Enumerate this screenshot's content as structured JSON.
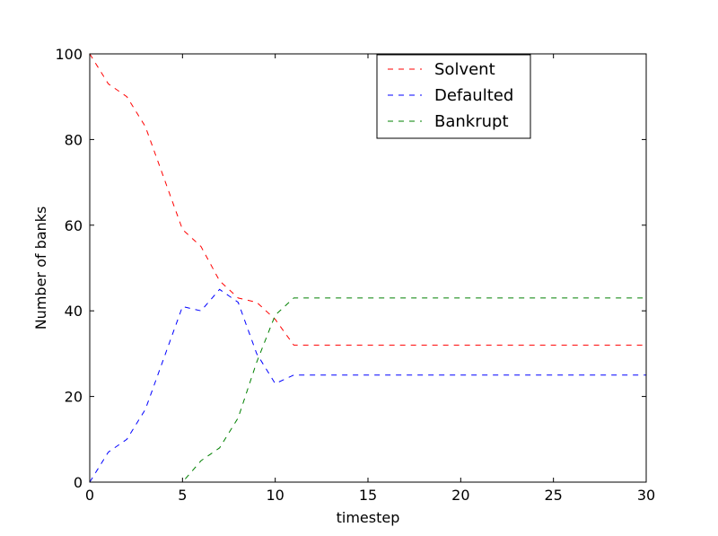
{
  "chart_data": {
    "type": "line",
    "title": "",
    "xlabel": "timestep",
    "ylabel": "Number of banks",
    "xlim": [
      0,
      30
    ],
    "ylim": [
      0,
      100
    ],
    "xticks": [
      0,
      5,
      10,
      15,
      20,
      25,
      30
    ],
    "yticks": [
      0,
      20,
      40,
      60,
      80,
      100
    ],
    "grid": false,
    "legend_position": "upper-center",
    "x": [
      0,
      1,
      2,
      3,
      4,
      5,
      6,
      7,
      8,
      9,
      10,
      11,
      12,
      13,
      14,
      15,
      16,
      17,
      18,
      19,
      20,
      21,
      22,
      23,
      24,
      25,
      26,
      27,
      28,
      29,
      30
    ],
    "series": [
      {
        "name": "Solvent",
        "color": "#ff0000",
        "style": "dashed",
        "values": [
          100,
          93,
          90,
          83,
          71,
          59,
          55,
          47,
          43,
          42,
          38,
          32,
          32,
          32,
          32,
          32,
          32,
          32,
          32,
          32,
          32,
          32,
          32,
          32,
          32,
          32,
          32,
          32,
          32,
          32,
          32
        ]
      },
      {
        "name": "Defaulted",
        "color": "#0000ff",
        "style": "dashed",
        "values": [
          0,
          7,
          10,
          17,
          29,
          41,
          40,
          45,
          42,
          30,
          23,
          25,
          25,
          25,
          25,
          25,
          25,
          25,
          25,
          25,
          25,
          25,
          25,
          25,
          25,
          25,
          25,
          25,
          25,
          25,
          25
        ]
      },
      {
        "name": "Bankrupt",
        "color": "#008000",
        "style": "dashed",
        "values": [
          0,
          0,
          0,
          0,
          0,
          0,
          5,
          8,
          15,
          28,
          39,
          43,
          43,
          43,
          43,
          43,
          43,
          43,
          43,
          43,
          43,
          43,
          43,
          43,
          43,
          43,
          43,
          43,
          43,
          43,
          43
        ]
      }
    ]
  }
}
